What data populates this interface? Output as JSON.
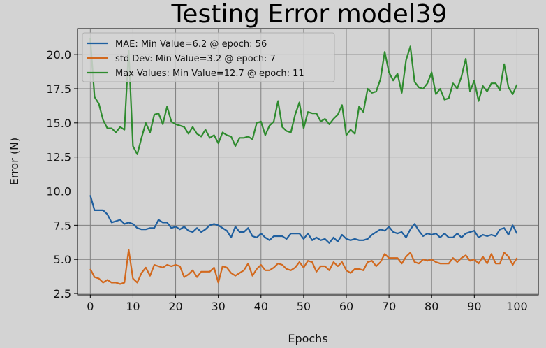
{
  "chart_data": {
    "type": "line",
    "title": "Testing Error model39",
    "xlabel": "Epochs",
    "ylabel": "Error (N)",
    "xlim": [
      -3,
      105
    ],
    "ylim": [
      2.4,
      21.9
    ],
    "xticks": [
      0,
      10,
      20,
      30,
      40,
      50,
      60,
      70,
      80,
      90,
      100
    ],
    "yticks": [
      2.5,
      5.0,
      7.5,
      10.0,
      12.5,
      15.0,
      17.5,
      20.0
    ],
    "ytick_labels": [
      "2.5",
      "5.0",
      "7.5",
      "10.0",
      "12.5",
      "15.0",
      "17.5",
      "20.0"
    ],
    "grid": true,
    "legend_position": "top-left",
    "series": [
      {
        "name": "MAE: Min Value=6.2 @ epoch: 56",
        "color": "#1f5f9f",
        "values": [
          9.7,
          8.6,
          8.6,
          8.6,
          8.3,
          7.7,
          7.8,
          7.9,
          7.6,
          7.7,
          7.6,
          7.3,
          7.2,
          7.2,
          7.3,
          7.3,
          7.9,
          7.7,
          7.7,
          7.3,
          7.4,
          7.2,
          7.4,
          7.1,
          7.0,
          7.3,
          7.0,
          7.2,
          7.5,
          7.6,
          7.5,
          7.3,
          7.1,
          6.6,
          7.4,
          7.0,
          7.0,
          7.3,
          6.7,
          6.6,
          6.9,
          6.6,
          6.4,
          6.7,
          6.7,
          6.7,
          6.5,
          6.9,
          6.9,
          6.9,
          6.5,
          6.9,
          6.4,
          6.6,
          6.4,
          6.5,
          6.2,
          6.6,
          6.3,
          6.8,
          6.5,
          6.4,
          6.5,
          6.4,
          6.4,
          6.5,
          6.8,
          7.0,
          7.2,
          7.1,
          7.4,
          7.0,
          6.9,
          7.0,
          6.6,
          7.2,
          7.6,
          7.1,
          6.7,
          6.9,
          6.8,
          6.9,
          6.6,
          6.9,
          6.6,
          6.6,
          6.9,
          6.6,
          6.9,
          7.0,
          7.1,
          6.6,
          6.8,
          6.7,
          6.8,
          6.7,
          7.2,
          7.3,
          6.8,
          7.5,
          6.9
        ]
      },
      {
        "name": "std Dev: Min Value=3.2 @ epoch: 7",
        "color": "#d2691e",
        "values": [
          4.3,
          3.7,
          3.6,
          3.3,
          3.5,
          3.3,
          3.3,
          3.2,
          3.3,
          5.7,
          3.6,
          3.3,
          4.0,
          4.4,
          3.8,
          4.6,
          4.5,
          4.4,
          4.6,
          4.5,
          4.6,
          4.5,
          3.7,
          3.9,
          4.2,
          3.7,
          4.1,
          4.1,
          4.1,
          4.4,
          3.3,
          4.5,
          4.4,
          4.0,
          3.8,
          4.0,
          4.2,
          4.7,
          3.8,
          4.3,
          4.6,
          4.2,
          4.2,
          4.4,
          4.7,
          4.6,
          4.3,
          4.2,
          4.4,
          4.8,
          4.4,
          4.9,
          4.8,
          4.1,
          4.5,
          4.5,
          4.2,
          4.8,
          4.5,
          4.8,
          4.2,
          4.0,
          4.3,
          4.3,
          4.2,
          4.8,
          4.9,
          4.5,
          4.8,
          5.4,
          5.1,
          5.1,
          5.1,
          4.7,
          5.2,
          5.5,
          4.8,
          4.7,
          5.0,
          4.9,
          5.0,
          4.8,
          4.7,
          4.7,
          4.7,
          5.1,
          4.8,
          5.1,
          5.3,
          4.9,
          5.0,
          4.7,
          5.2,
          4.7,
          5.4,
          4.7,
          4.7,
          5.5,
          5.2,
          4.6,
          5.1
        ]
      },
      {
        "name": "Max Values: Min Value=12.7 @ epoch: 11",
        "color": "#2e8b2e",
        "values": [
          21.2,
          16.9,
          16.4,
          15.2,
          14.6,
          14.6,
          14.3,
          14.7,
          14.5,
          20.3,
          13.3,
          12.7,
          13.9,
          15.0,
          14.3,
          15.6,
          15.7,
          14.9,
          16.2,
          15.1,
          14.9,
          14.8,
          14.7,
          14.2,
          14.7,
          14.2,
          14.0,
          14.5,
          13.9,
          14.1,
          13.5,
          14.3,
          14.1,
          14.0,
          13.3,
          13.9,
          13.9,
          14.0,
          13.8,
          15.0,
          15.1,
          14.1,
          14.8,
          15.1,
          16.6,
          14.7,
          14.4,
          14.3,
          15.6,
          16.5,
          14.6,
          15.8,
          15.7,
          15.7,
          15.1,
          15.3,
          14.9,
          15.3,
          15.6,
          16.3,
          14.1,
          14.5,
          14.2,
          16.2,
          15.8,
          17.5,
          17.2,
          17.3,
          18.2,
          20.2,
          18.7,
          18.1,
          18.6,
          17.2,
          19.6,
          20.6,
          18.0,
          17.6,
          17.5,
          17.9,
          18.7,
          17.1,
          17.5,
          16.7,
          16.8,
          17.9,
          17.5,
          18.4,
          19.7,
          17.3,
          18.1,
          16.6,
          17.7,
          17.3,
          17.9,
          17.9,
          17.4,
          19.3,
          17.6,
          17.1,
          17.8
        ]
      }
    ]
  }
}
